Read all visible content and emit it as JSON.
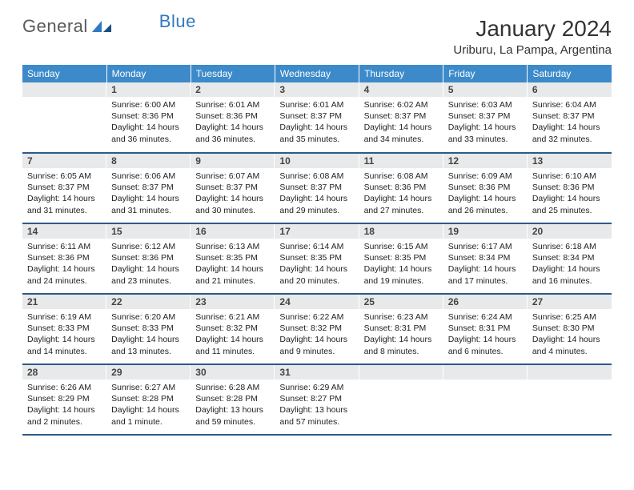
{
  "logo": {
    "text_general": "General",
    "text_blue": "Blue"
  },
  "title": "January 2024",
  "location": "Uriburu, La Pampa, Argentina",
  "colors": {
    "header_bg": "#3c8ac9",
    "header_text": "#ffffff",
    "daynum_bg": "#e8e9ea",
    "row_divider": "#2c5a8a",
    "logo_gray": "#5a5a5a",
    "logo_blue": "#2f7abf"
  },
  "weekdays": [
    "Sunday",
    "Monday",
    "Tuesday",
    "Wednesday",
    "Thursday",
    "Friday",
    "Saturday"
  ],
  "weeks": [
    [
      {
        "n": "",
        "sunrise": "",
        "sunset": "",
        "daylight": ""
      },
      {
        "n": "1",
        "sunrise": "Sunrise: 6:00 AM",
        "sunset": "Sunset: 8:36 PM",
        "daylight": "Daylight: 14 hours and 36 minutes."
      },
      {
        "n": "2",
        "sunrise": "Sunrise: 6:01 AM",
        "sunset": "Sunset: 8:36 PM",
        "daylight": "Daylight: 14 hours and 36 minutes."
      },
      {
        "n": "3",
        "sunrise": "Sunrise: 6:01 AM",
        "sunset": "Sunset: 8:37 PM",
        "daylight": "Daylight: 14 hours and 35 minutes."
      },
      {
        "n": "4",
        "sunrise": "Sunrise: 6:02 AM",
        "sunset": "Sunset: 8:37 PM",
        "daylight": "Daylight: 14 hours and 34 minutes."
      },
      {
        "n": "5",
        "sunrise": "Sunrise: 6:03 AM",
        "sunset": "Sunset: 8:37 PM",
        "daylight": "Daylight: 14 hours and 33 minutes."
      },
      {
        "n": "6",
        "sunrise": "Sunrise: 6:04 AM",
        "sunset": "Sunset: 8:37 PM",
        "daylight": "Daylight: 14 hours and 32 minutes."
      }
    ],
    [
      {
        "n": "7",
        "sunrise": "Sunrise: 6:05 AM",
        "sunset": "Sunset: 8:37 PM",
        "daylight": "Daylight: 14 hours and 31 minutes."
      },
      {
        "n": "8",
        "sunrise": "Sunrise: 6:06 AM",
        "sunset": "Sunset: 8:37 PM",
        "daylight": "Daylight: 14 hours and 31 minutes."
      },
      {
        "n": "9",
        "sunrise": "Sunrise: 6:07 AM",
        "sunset": "Sunset: 8:37 PM",
        "daylight": "Daylight: 14 hours and 30 minutes."
      },
      {
        "n": "10",
        "sunrise": "Sunrise: 6:08 AM",
        "sunset": "Sunset: 8:37 PM",
        "daylight": "Daylight: 14 hours and 29 minutes."
      },
      {
        "n": "11",
        "sunrise": "Sunrise: 6:08 AM",
        "sunset": "Sunset: 8:36 PM",
        "daylight": "Daylight: 14 hours and 27 minutes."
      },
      {
        "n": "12",
        "sunrise": "Sunrise: 6:09 AM",
        "sunset": "Sunset: 8:36 PM",
        "daylight": "Daylight: 14 hours and 26 minutes."
      },
      {
        "n": "13",
        "sunrise": "Sunrise: 6:10 AM",
        "sunset": "Sunset: 8:36 PM",
        "daylight": "Daylight: 14 hours and 25 minutes."
      }
    ],
    [
      {
        "n": "14",
        "sunrise": "Sunrise: 6:11 AM",
        "sunset": "Sunset: 8:36 PM",
        "daylight": "Daylight: 14 hours and 24 minutes."
      },
      {
        "n": "15",
        "sunrise": "Sunrise: 6:12 AM",
        "sunset": "Sunset: 8:36 PM",
        "daylight": "Daylight: 14 hours and 23 minutes."
      },
      {
        "n": "16",
        "sunrise": "Sunrise: 6:13 AM",
        "sunset": "Sunset: 8:35 PM",
        "daylight": "Daylight: 14 hours and 21 minutes."
      },
      {
        "n": "17",
        "sunrise": "Sunrise: 6:14 AM",
        "sunset": "Sunset: 8:35 PM",
        "daylight": "Daylight: 14 hours and 20 minutes."
      },
      {
        "n": "18",
        "sunrise": "Sunrise: 6:15 AM",
        "sunset": "Sunset: 8:35 PM",
        "daylight": "Daylight: 14 hours and 19 minutes."
      },
      {
        "n": "19",
        "sunrise": "Sunrise: 6:17 AM",
        "sunset": "Sunset: 8:34 PM",
        "daylight": "Daylight: 14 hours and 17 minutes."
      },
      {
        "n": "20",
        "sunrise": "Sunrise: 6:18 AM",
        "sunset": "Sunset: 8:34 PM",
        "daylight": "Daylight: 14 hours and 16 minutes."
      }
    ],
    [
      {
        "n": "21",
        "sunrise": "Sunrise: 6:19 AM",
        "sunset": "Sunset: 8:33 PM",
        "daylight": "Daylight: 14 hours and 14 minutes."
      },
      {
        "n": "22",
        "sunrise": "Sunrise: 6:20 AM",
        "sunset": "Sunset: 8:33 PM",
        "daylight": "Daylight: 14 hours and 13 minutes."
      },
      {
        "n": "23",
        "sunrise": "Sunrise: 6:21 AM",
        "sunset": "Sunset: 8:32 PM",
        "daylight": "Daylight: 14 hours and 11 minutes."
      },
      {
        "n": "24",
        "sunrise": "Sunrise: 6:22 AM",
        "sunset": "Sunset: 8:32 PM",
        "daylight": "Daylight: 14 hours and 9 minutes."
      },
      {
        "n": "25",
        "sunrise": "Sunrise: 6:23 AM",
        "sunset": "Sunset: 8:31 PM",
        "daylight": "Daylight: 14 hours and 8 minutes."
      },
      {
        "n": "26",
        "sunrise": "Sunrise: 6:24 AM",
        "sunset": "Sunset: 8:31 PM",
        "daylight": "Daylight: 14 hours and 6 minutes."
      },
      {
        "n": "27",
        "sunrise": "Sunrise: 6:25 AM",
        "sunset": "Sunset: 8:30 PM",
        "daylight": "Daylight: 14 hours and 4 minutes."
      }
    ],
    [
      {
        "n": "28",
        "sunrise": "Sunrise: 6:26 AM",
        "sunset": "Sunset: 8:29 PM",
        "daylight": "Daylight: 14 hours and 2 minutes."
      },
      {
        "n": "29",
        "sunrise": "Sunrise: 6:27 AM",
        "sunset": "Sunset: 8:28 PM",
        "daylight": "Daylight: 14 hours and 1 minute."
      },
      {
        "n": "30",
        "sunrise": "Sunrise: 6:28 AM",
        "sunset": "Sunset: 8:28 PM",
        "daylight": "Daylight: 13 hours and 59 minutes."
      },
      {
        "n": "31",
        "sunrise": "Sunrise: 6:29 AM",
        "sunset": "Sunset: 8:27 PM",
        "daylight": "Daylight: 13 hours and 57 minutes."
      },
      {
        "n": "",
        "sunrise": "",
        "sunset": "",
        "daylight": ""
      },
      {
        "n": "",
        "sunrise": "",
        "sunset": "",
        "daylight": ""
      },
      {
        "n": "",
        "sunrise": "",
        "sunset": "",
        "daylight": ""
      }
    ]
  ]
}
